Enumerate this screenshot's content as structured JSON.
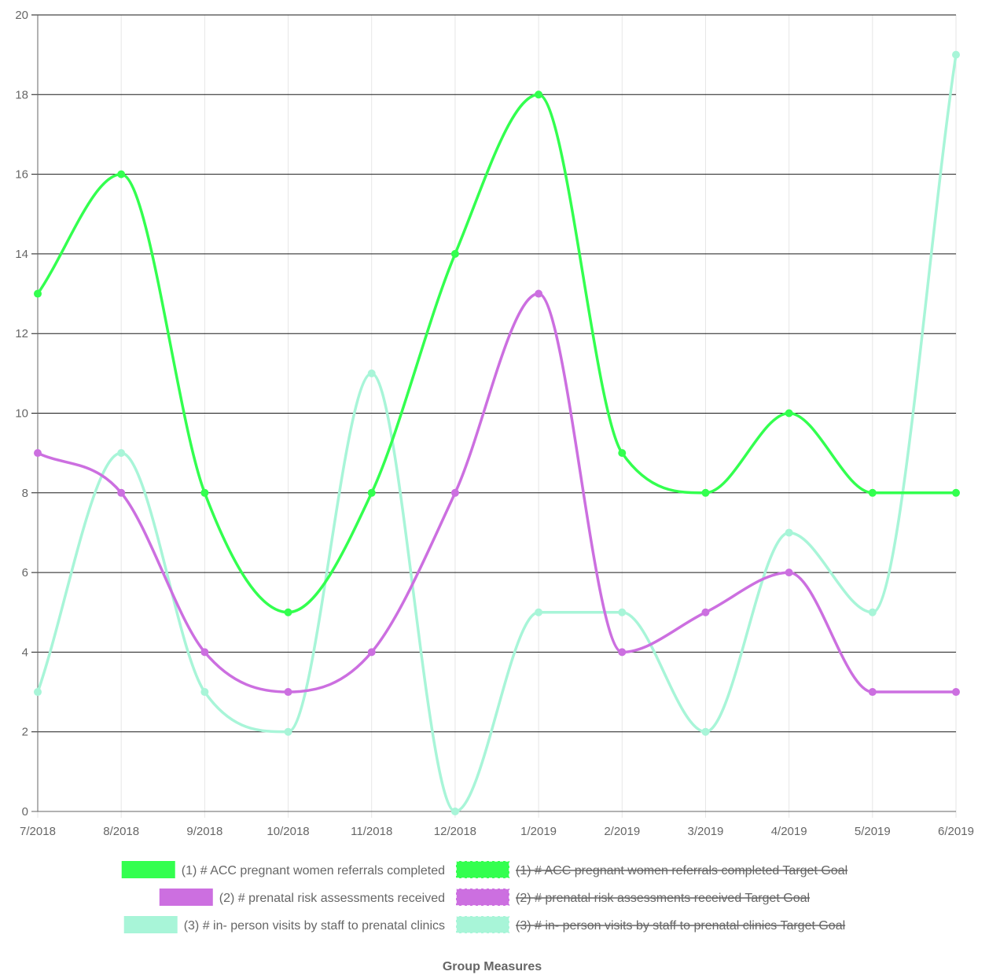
{
  "chart_data": {
    "type": "line",
    "title": "Group Measures",
    "title_position": "bottom",
    "categories": [
      "7/2018",
      "8/2018",
      "9/2018",
      "10/2018",
      "11/2018",
      "12/2018",
      "1/2019",
      "2/2019",
      "3/2019",
      "4/2019",
      "5/2019",
      "6/2019"
    ],
    "ylim": [
      0,
      20
    ],
    "yticks": [
      0,
      2,
      4,
      6,
      8,
      10,
      12,
      14,
      16,
      18,
      20
    ],
    "grid": true,
    "smooth": true,
    "legend_position": "bottom",
    "series": [
      {
        "name": "(1) # ACC pregnant women referrals completed",
        "color": "#33ff4f",
        "values": [
          13,
          16,
          8,
          5,
          8,
          14,
          18,
          9,
          8,
          10,
          8,
          8
        ]
      },
      {
        "name": "(2) # prenatal risk assessments received",
        "color": "#cc6fe0",
        "values": [
          9,
          8,
          4,
          3,
          4,
          8,
          13,
          4,
          5,
          6,
          3,
          3
        ]
      },
      {
        "name": "(3) # in- person visits by staff to prenatal clinics",
        "color": "#a8f5d8",
        "values": [
          3,
          9,
          3,
          2,
          11,
          0,
          5,
          5,
          2,
          7,
          5,
          19
        ]
      }
    ],
    "legend": [
      {
        "label": "(1) # ACC pregnant women referrals completed",
        "color": "#33ff4f",
        "dashed": false,
        "hidden": false
      },
      {
        "label": "(1) # ACC pregnant women referrals completed Target Goal",
        "color": "#33ff4f",
        "dashed": true,
        "hidden": true
      },
      {
        "label": "(2) # prenatal risk assessments received",
        "color": "#cc6fe0",
        "dashed": false,
        "hidden": false
      },
      {
        "label": "(2) # prenatal risk assessments received Target Goal",
        "color": "#cc6fe0",
        "dashed": true,
        "hidden": true
      },
      {
        "label": "(3) # in- person visits by staff to prenatal clinics",
        "color": "#a8f5d8",
        "dashed": false,
        "hidden": false
      },
      {
        "label": "(3) # in- person visits by staff to prenatal clinics Target Goal",
        "color": "#a8f5d8",
        "dashed": true,
        "hidden": true
      }
    ]
  }
}
